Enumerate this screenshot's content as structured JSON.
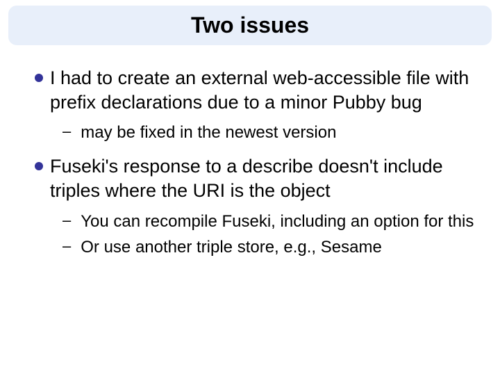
{
  "slide": {
    "title": "Two issues",
    "title_bg": "#e8effa",
    "title_color": "#000000",
    "bullet_color": "#333399",
    "background": "#ffffff",
    "bullets": [
      {
        "text": "I had to create an external web-accessible file with prefix declarations due to a minor Pubby bug",
        "subs": [
          "may be fixed in the newest version"
        ]
      },
      {
        "text": "Fuseki's response to a describe doesn't include triples where the URI is the object",
        "subs": [
          "You can recompile Fuseki, including an option for this",
          "Or use another triple store, e.g., Sesame"
        ]
      }
    ]
  }
}
